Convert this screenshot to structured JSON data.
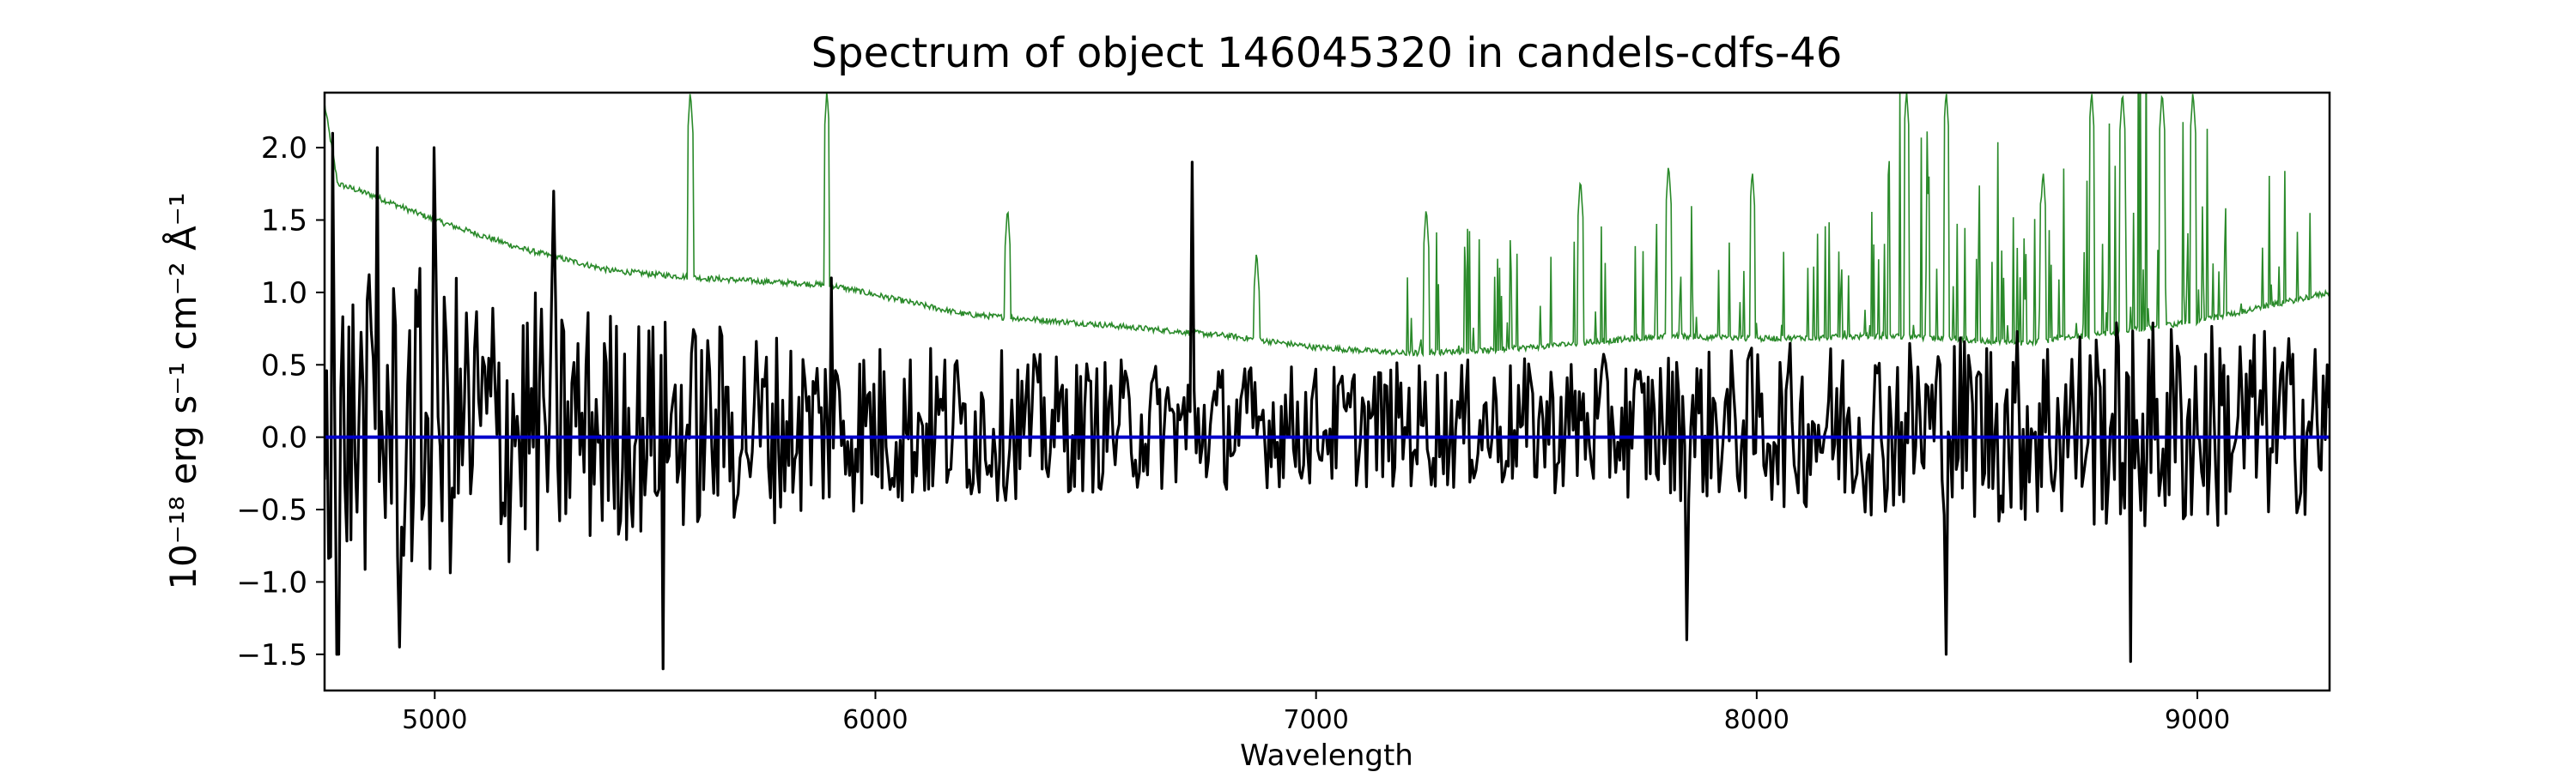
{
  "chart_data": {
    "type": "line",
    "title": "Spectrum of object 146045320 in candels-cdfs-46",
    "xlabel": "Wavelength",
    "ylabel": "10⁻¹⁸ erg s⁻¹ cm⁻² Å⁻¹",
    "xlim": [
      4750,
      9300
    ],
    "ylim": [
      -1.75,
      2.38
    ],
    "x_ticks": [
      5000,
      6000,
      7000,
      8000,
      9000
    ],
    "y_ticks": [
      -1.5,
      -1.0,
      -0.5,
      0.0,
      0.5,
      1.0,
      1.5,
      2.0
    ],
    "grid": false,
    "series": [
      {
        "color": "#2a8a2a",
        "role": "upper envelope",
        "continuum": [
          [
            4750,
            2.3
          ],
          [
            4780,
            1.75
          ],
          [
            4850,
            1.68
          ],
          [
            5000,
            1.5
          ],
          [
            5200,
            1.3
          ],
          [
            5400,
            1.15
          ],
          [
            5600,
            1.1
          ],
          [
            5900,
            1.05
          ],
          [
            6200,
            0.85
          ],
          [
            6500,
            0.78
          ],
          [
            6800,
            0.7
          ],
          [
            7000,
            0.62
          ],
          [
            7200,
            0.58
          ],
          [
            7400,
            0.6
          ],
          [
            7600,
            0.65
          ],
          [
            7800,
            0.7
          ],
          [
            8000,
            0.68
          ],
          [
            8300,
            0.7
          ],
          [
            8600,
            0.65
          ],
          [
            8800,
            0.72
          ],
          [
            9000,
            0.8
          ],
          [
            9300,
            1.0
          ]
        ],
        "peaks": [
          [
            5580,
            2.4
          ],
          [
            5890,
            2.4
          ],
          [
            6300,
            1.6
          ],
          [
            6865,
            1.3
          ],
          [
            7250,
            1.6
          ],
          [
            7600,
            1.8
          ],
          [
            7800,
            1.9
          ],
          [
            7990,
            1.85
          ],
          [
            8340,
            2.4
          ],
          [
            8430,
            2.4
          ],
          [
            8650,
            1.85
          ],
          [
            8760,
            2.4
          ],
          [
            8830,
            2.4
          ],
          [
            8920,
            2.4
          ],
          [
            8990,
            2.4
          ]
        ]
      },
      {
        "color": "#000000",
        "role": "flux",
        "envelope": [
          [
            4750,
            1.2
          ],
          [
            5000,
            1.3
          ],
          [
            5500,
            0.9
          ],
          [
            6000,
            0.7
          ],
          [
            6500,
            0.55
          ],
          [
            7000,
            0.5
          ],
          [
            7500,
            0.55
          ],
          [
            8000,
            0.65
          ],
          [
            8500,
            0.8
          ],
          [
            9000,
            0.9
          ],
          [
            9300,
            0.7
          ]
        ],
        "peaks": [
          [
            4770,
            2.1
          ],
          [
            4870,
            2.0
          ],
          [
            5000,
            2.0
          ],
          [
            5270,
            1.7
          ],
          [
            5520,
            -1.6
          ],
          [
            5900,
            1.1
          ],
          [
            6720,
            1.9
          ],
          [
            7840,
            -1.4
          ],
          [
            8430,
            -1.5
          ],
          [
            8850,
            -1.55
          ],
          [
            4780,
            -1.5
          ],
          [
            4920,
            -1.45
          ]
        ]
      },
      {
        "color": "#0000cc",
        "role": "zero line",
        "y": 0.0
      }
    ]
  }
}
